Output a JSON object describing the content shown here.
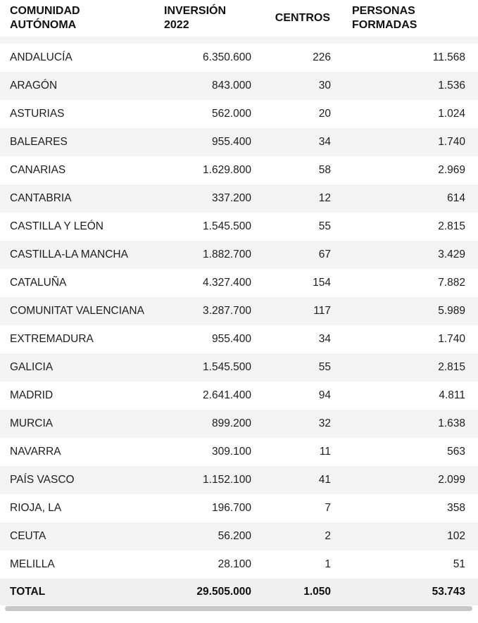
{
  "chart_data": {
    "type": "table",
    "columns": [
      {
        "key": "community",
        "label": "COMUNIDAD AUTÓNOMA",
        "align": "left"
      },
      {
        "key": "investment",
        "label": "INVERSIÓN 2022",
        "align": "right"
      },
      {
        "key": "centers",
        "label": "CENTROS",
        "align": "right"
      },
      {
        "key": "trained",
        "label": "PERSONAS FORMADAS",
        "align": "right"
      }
    ],
    "rows": [
      [
        "ANDALUCÍA",
        "6.350.600",
        "226",
        "11.568"
      ],
      [
        "ARAGÓN",
        "843.000",
        "30",
        "1.536"
      ],
      [
        "ASTURIAS",
        "562.000",
        "20",
        "1.024"
      ],
      [
        "BALEARES",
        "955.400",
        "34",
        "1.740"
      ],
      [
        "CANARIAS",
        "1.629.800",
        "58",
        "2.969"
      ],
      [
        "CANTABRIA",
        "337.200",
        "12",
        "614"
      ],
      [
        "CASTILLA Y LEÓN",
        "1.545.500",
        "55",
        "2.815"
      ],
      [
        "CASTILLA-LA MANCHA",
        "1.882.700",
        "67",
        "3.429"
      ],
      [
        "CATALUÑA",
        "4.327.400",
        "154",
        "7.882"
      ],
      [
        "COMUNITAT VALENCIANA",
        "3.287.700",
        "117",
        "5.989"
      ],
      [
        "EXTREMADURA",
        "955.400",
        "34",
        "1.740"
      ],
      [
        "GALICIA",
        "1.545.500",
        "55",
        "2.815"
      ],
      [
        "MADRID",
        "2.641.400",
        "94",
        "4.811"
      ],
      [
        "MURCIA",
        "899.200",
        "32",
        "1.638"
      ],
      [
        "NAVARRA",
        "309.100",
        "11",
        "563"
      ],
      [
        "PAÍS VASCO",
        "1.152.100",
        "41",
        "2.099"
      ],
      [
        "RIOJA, LA",
        "196.700",
        "7",
        "358"
      ],
      [
        "CEUTA",
        "56.200",
        "2",
        "102"
      ],
      [
        "MELILLA",
        "28.100",
        "1",
        "51"
      ]
    ],
    "total": [
      "TOTAL",
      "29.505.000",
      "1.050",
      "53.743"
    ],
    "layout_hints": {
      "zebra_striping": true,
      "stripe_color": "#f3f3f3",
      "total_row_background": "#efefef",
      "header_divider_color": "#f3f3f3",
      "scrollbar_thumb_color": "#c7c7c7"
    }
  },
  "colors": {
    "text": "#1d1d1d",
    "header_text": "#111111",
    "stripe": "#f3f3f3",
    "total_bg": "#efefef",
    "scrollbar_thumb": "#c7c7c7",
    "background": "#ffffff"
  }
}
